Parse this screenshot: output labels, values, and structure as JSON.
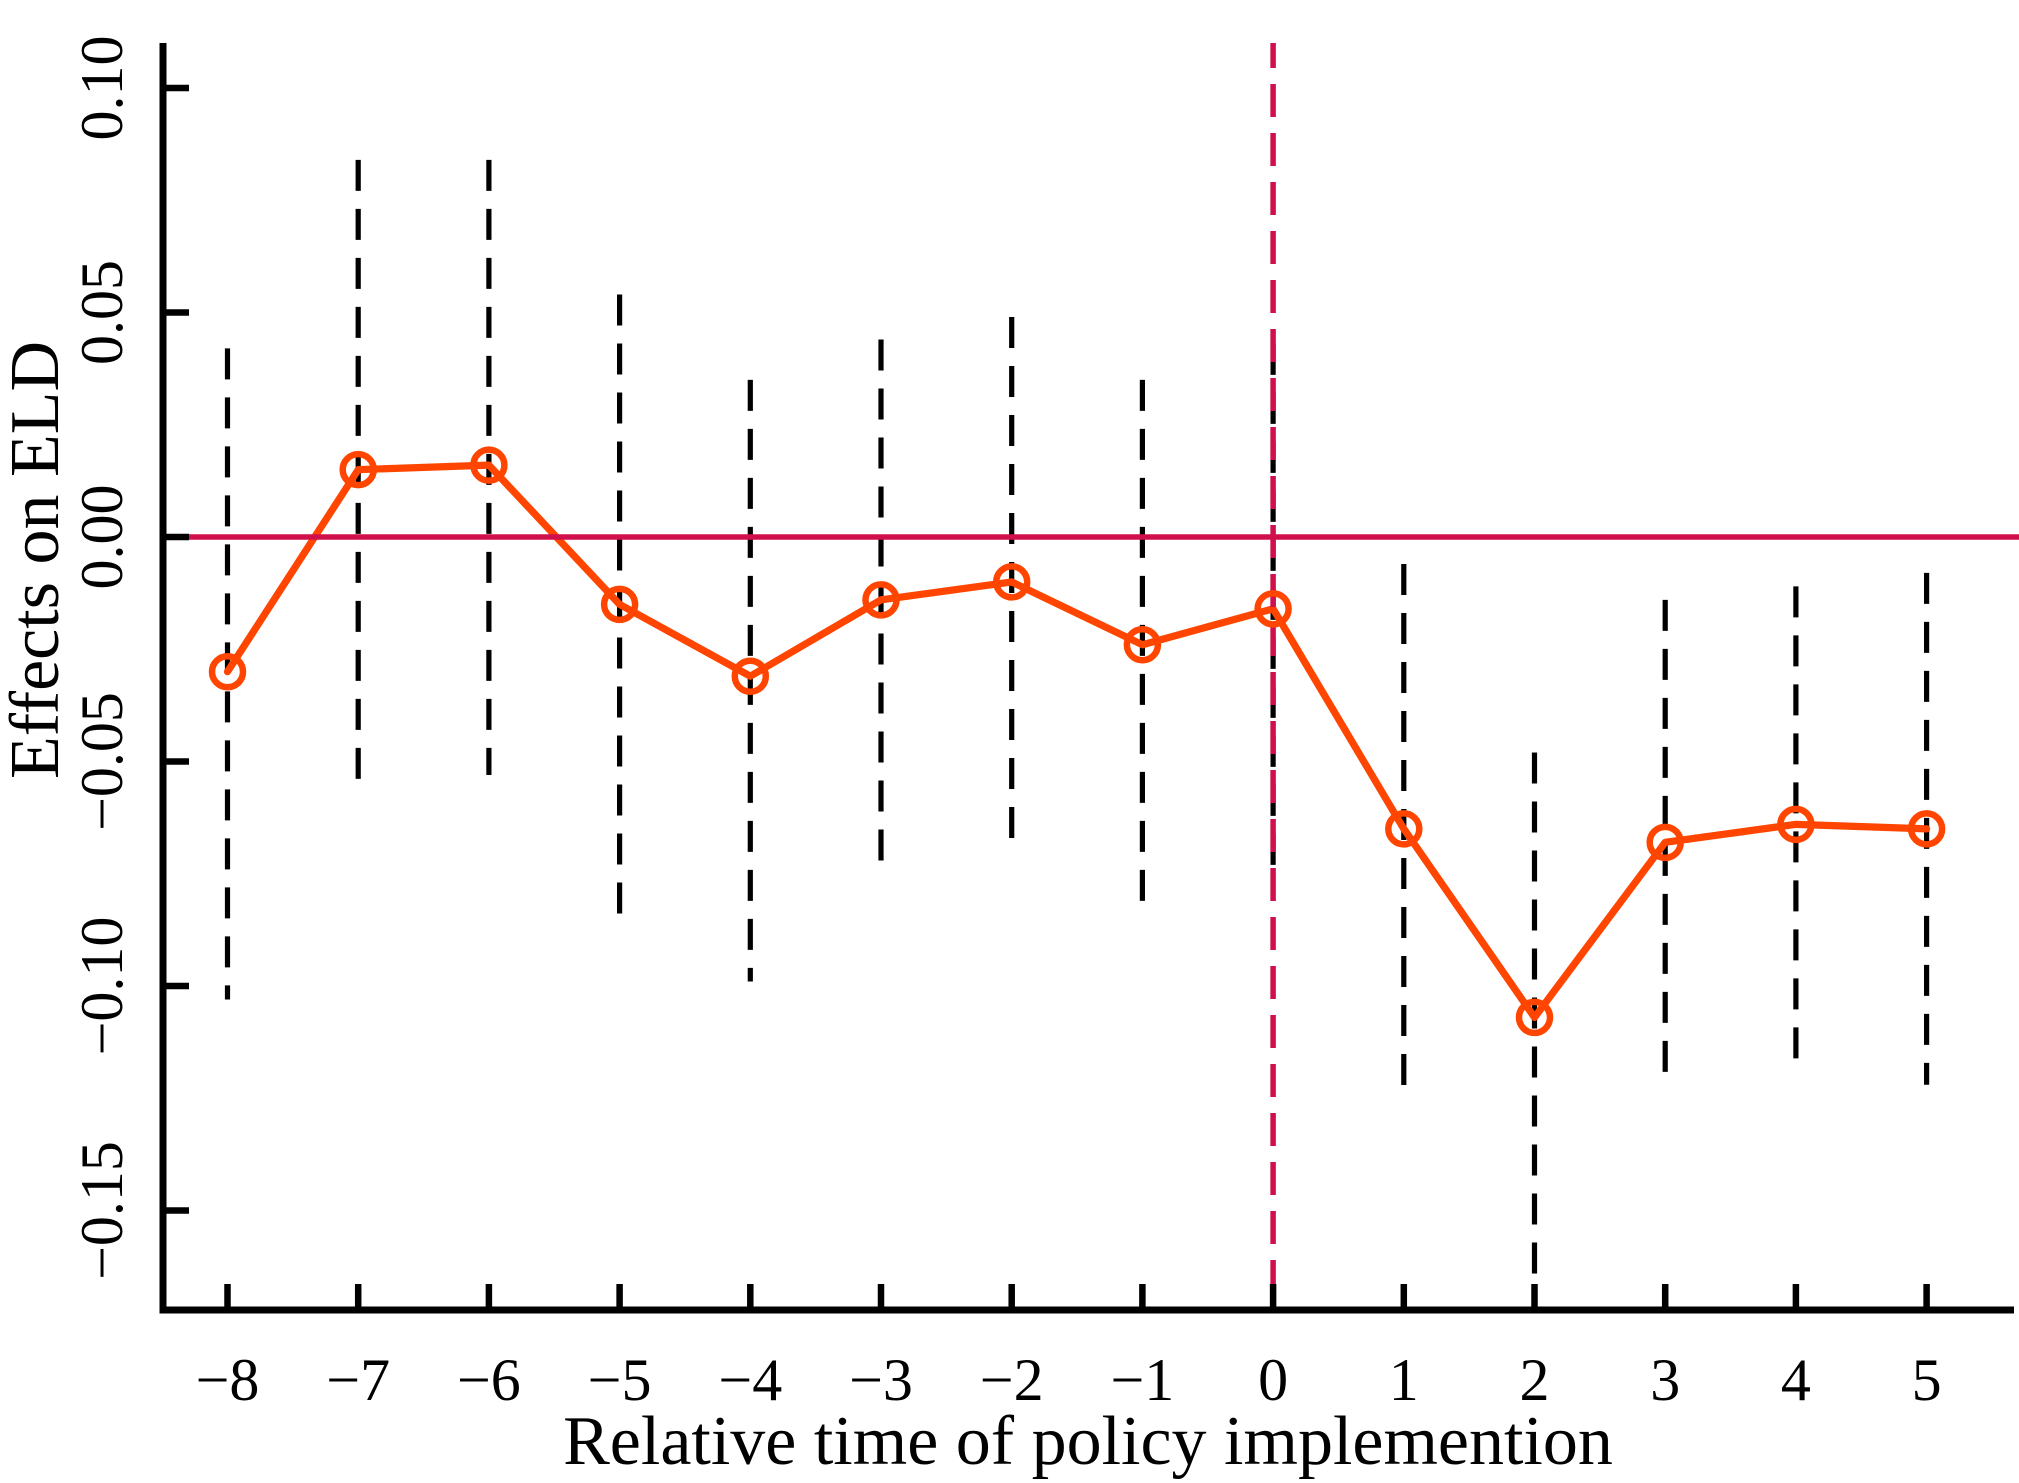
{
  "figure": {
    "background": "#FFFFFF"
  },
  "chart_data": {
    "type": "line",
    "title": "",
    "xlabel": "Relative time of policy implemention",
    "ylabel": "Effects on ELD",
    "x": [
      -8,
      -7,
      -6,
      -5,
      -4,
      -3,
      -2,
      -1,
      0,
      1,
      2,
      3,
      4,
      5
    ],
    "series": [
      {
        "name": "point-estimate",
        "marker": "open-circle",
        "values": [
          -0.03,
          0.015,
          0.016,
          -0.015,
          -0.031,
          -0.014,
          -0.01,
          -0.024,
          -0.016,
          -0.065,
          -0.107,
          -0.068,
          -0.064,
          -0.065
        ]
      }
    ],
    "ci_upper": [
      0.042,
      0.084,
      0.084,
      0.054,
      0.035,
      0.044,
      0.049,
      0.035,
      0.043,
      -0.006,
      -0.048,
      -0.014,
      -0.011,
      -0.008
    ],
    "ci_lower": [
      -0.103,
      -0.055,
      -0.053,
      -0.084,
      -0.099,
      -0.074,
      -0.068,
      -0.083,
      -0.074,
      -0.125,
      -0.165,
      -0.122,
      -0.12,
      -0.122
    ],
    "x_ticks": [
      {
        "label": "−8",
        "value": -8
      },
      {
        "label": "−7",
        "value": -7
      },
      {
        "label": "−6",
        "value": -6
      },
      {
        "label": "−5",
        "value": -5
      },
      {
        "label": "−4",
        "value": -4
      },
      {
        "label": "−3",
        "value": -3
      },
      {
        "label": "−2",
        "value": -2
      },
      {
        "label": "−1",
        "value": -1
      },
      {
        "label": "0",
        "value": 0
      },
      {
        "label": "1",
        "value": 1
      },
      {
        "label": "2",
        "value": 2
      },
      {
        "label": "3",
        "value": 3
      },
      {
        "label": "4",
        "value": 4
      },
      {
        "label": "5",
        "value": 5
      }
    ],
    "y_ticks": [
      {
        "label": "0.10",
        "value": 0.1
      },
      {
        "label": "0.05",
        "value": 0.05
      },
      {
        "label": "0.00",
        "value": 0.0
      },
      {
        "label": "−0.05",
        "value": -0.05
      },
      {
        "label": "−0.10",
        "value": -0.1
      },
      {
        "label": "−0.15",
        "value": -0.15
      }
    ],
    "xlim": [
      -8.5,
      5.65
    ],
    "ylim": [
      -0.172,
      0.11
    ],
    "grid": false,
    "legend": null,
    "reference_lines": [
      {
        "orientation": "horizontal",
        "value": 0,
        "style": "solid",
        "color": "#D0104C"
      },
      {
        "orientation": "vertical",
        "value": 0,
        "style": "dashed",
        "color": "#D0104C"
      }
    ],
    "colors": {
      "series": "#FF4500",
      "ci": "#000000",
      "reference": "#D0104C",
      "axis": "#000000"
    }
  }
}
